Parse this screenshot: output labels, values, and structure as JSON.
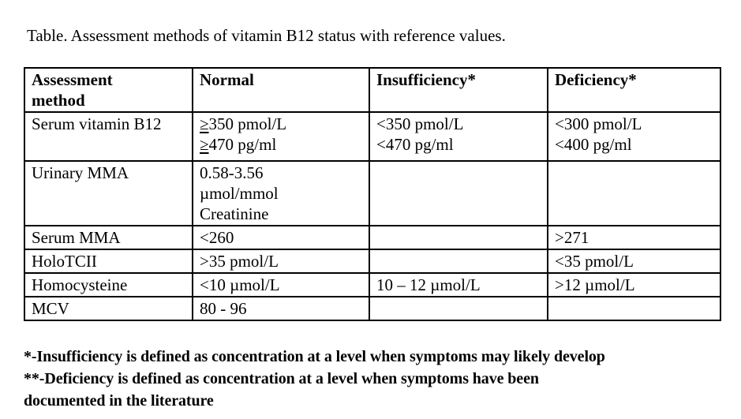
{
  "page": {
    "title": "Table. Assessment methods of vitamin B12 status with reference values."
  },
  "table": {
    "headers": [
      "Assessment\nmethod",
      "Normal",
      "Insufficiency*",
      "Deficiency*"
    ],
    "rows": [
      {
        "method": "Serum vitamin B12",
        "normal": "≥350 pmol/L\n≥470 pg/ml",
        "insufficiency": "<350 pmol/L\n<470 pg/ml",
        "deficiency": "<300 pmol/L\n<400 pg/ml"
      },
      {
        "method": "Urinary MMA",
        "normal": "0.58-3.56\nµmol/mmol\nCreatinine",
        "insufficiency": "",
        "deficiency": ""
      },
      {
        "method": "Serum MMA",
        "normal": "<260",
        "insufficiency": "",
        "deficiency": ">271"
      },
      {
        "method": "HoloTCII",
        "normal": ">35 pmol/L",
        "insufficiency": "",
        "deficiency": "<35 pmol/L"
      },
      {
        "method": "Homocysteine",
        "normal": "<10 µmol/L",
        "insufficiency": "10 – 12 µmol/L",
        "deficiency": ">12 µmol/L"
      },
      {
        "method": "MCV",
        "normal": "80 - 96",
        "insufficiency": "",
        "deficiency": ""
      }
    ]
  },
  "footnotes": {
    "insufficiency": "*-Insufficiency is defined as concentration at a level when symptoms may likely develop",
    "deficiency": "**-Deficiency is defined as concentration at a level when symptoms have been\ndocumented in the literature"
  }
}
